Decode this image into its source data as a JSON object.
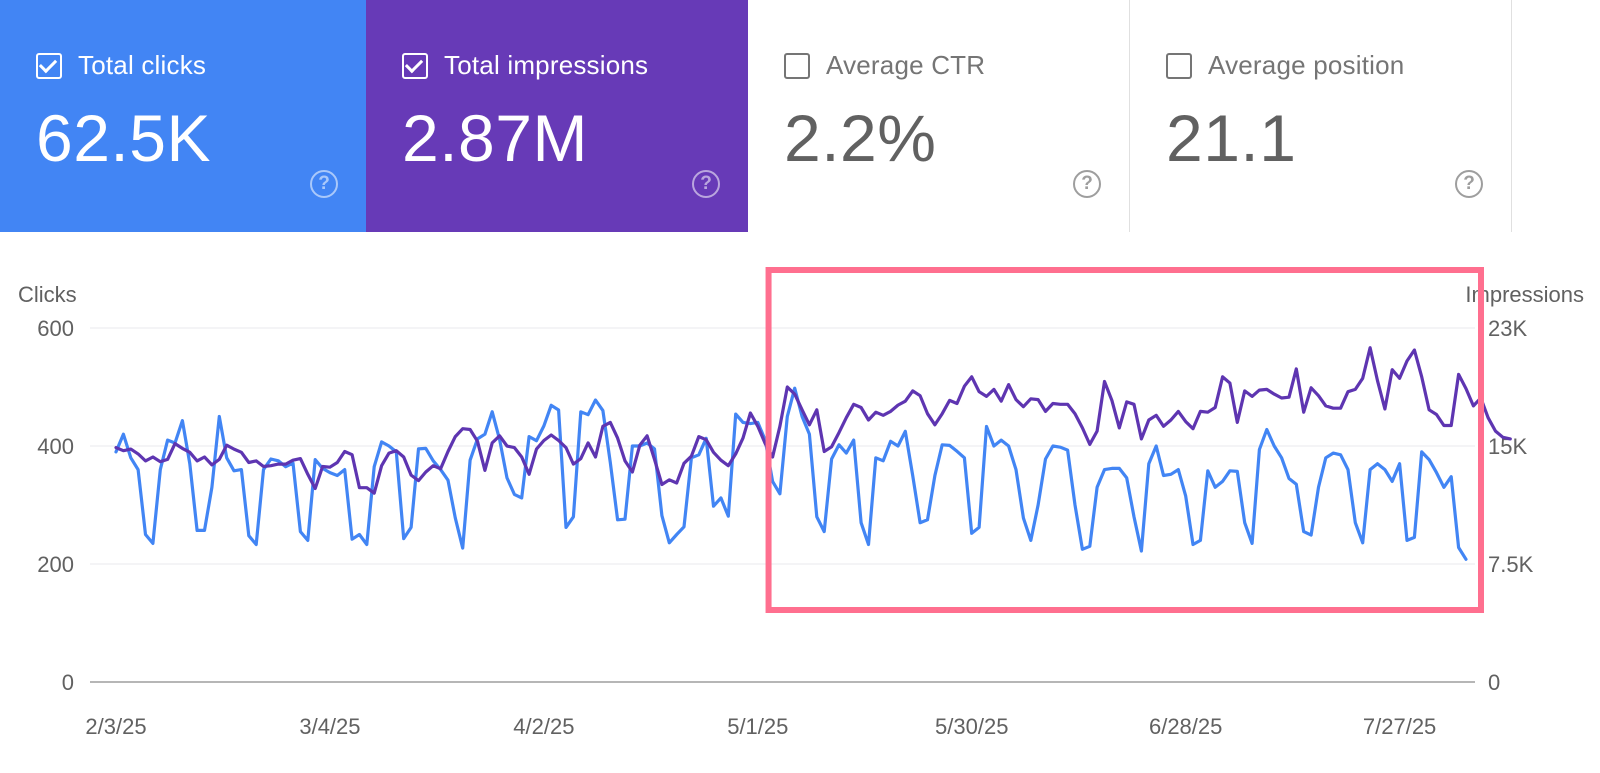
{
  "cards": [
    {
      "label": "Total clicks",
      "value": "62.5K",
      "checked": true,
      "color": "#4285f4"
    },
    {
      "label": "Total impressions",
      "value": "2.87M",
      "checked": true,
      "color": "#673ab7"
    },
    {
      "label": "Average CTR",
      "value": "2.2%",
      "checked": false,
      "color": "#ffffff"
    },
    {
      "label": "Average position",
      "value": "21.1",
      "checked": false,
      "color": "#ffffff"
    }
  ],
  "help_glyph": "?",
  "chart_data": {
    "type": "line",
    "left_axis_title": "Clicks",
    "right_axis_title": "Impressions",
    "left_ticks": [
      "0",
      "200",
      "400",
      "600"
    ],
    "left_tick_values": [
      0,
      200,
      400,
      600
    ],
    "right_ticks": [
      "0",
      "7.5K",
      "15K",
      "23K"
    ],
    "right_tick_values": [
      0,
      7500,
      15000,
      22500
    ],
    "ylim_left": [
      0,
      600
    ],
    "ylim_right": [
      0,
      22500
    ],
    "x_tick_labels": [
      "2/3/25",
      "3/4/25",
      "4/2/25",
      "5/1/25",
      "5/30/25",
      "6/28/25",
      "7/27/25"
    ],
    "x_tick_days": [
      0,
      29,
      58,
      87,
      116,
      145,
      174
    ],
    "n_days": 184,
    "grid": true,
    "highlight": {
      "start_day": 89,
      "end_day": 184,
      "color": "#ff6f8f"
    },
    "series": [
      {
        "name": "Clicks",
        "axis": "left",
        "color": "#4285f4",
        "values": [
          390,
          420,
          380,
          360,
          250,
          235,
          360,
          410,
          405,
          443,
          370,
          257,
          257,
          330,
          450,
          380,
          358,
          360,
          248,
          233,
          360,
          378,
          375,
          365,
          371,
          255,
          240,
          377,
          362,
          355,
          350,
          360,
          242,
          250,
          233,
          365,
          407,
          400,
          390,
          243,
          262,
          395,
          396,
          375,
          360,
          342,
          278,
          227,
          376,
          412,
          420,
          458,
          411,
          346,
          318,
          312,
          416,
          409,
          434,
          469,
          461,
          262,
          280,
          458,
          453,
          478,
          460,
          372,
          275,
          276,
          400,
          400,
          405,
          395,
          282,
          236,
          250,
          263,
          380,
          385,
          413,
          298,
          312,
          281,
          454,
          440,
          438,
          440,
          410,
          340,
          319,
          450,
          498,
          450,
          420,
          280,
          255,
          378,
          402,
          388,
          410,
          270,
          233,
          380,
          375,
          408,
          400,
          425,
          350,
          270,
          275,
          350,
          402,
          401,
          391,
          380,
          252,
          262,
          433,
          400,
          410,
          400,
          360,
          278,
          240,
          300,
          378,
          400,
          398,
          393,
          300,
          225,
          230,
          330,
          360,
          362,
          362,
          346,
          280,
          222,
          370,
          400,
          350,
          352,
          360,
          315,
          233,
          240,
          358,
          330,
          340,
          358,
          357,
          270,
          235,
          394,
          428,
          400,
          380,
          345,
          335,
          255,
          249,
          330,
          380,
          388,
          385,
          360,
          270,
          236,
          360,
          370,
          360,
          340,
          370,
          240,
          245,
          390,
          377,
          355,
          330,
          348,
          228,
          208
        ]
      },
      {
        "name": "Impressions",
        "axis": "right",
        "color": "#5e35b1",
        "values": [
          14900,
          14700,
          14800,
          14500,
          14050,
          14300,
          14000,
          14150,
          15150,
          14850,
          14600,
          14050,
          14300,
          13800,
          14150,
          15050,
          14800,
          14600,
          13950,
          14050,
          13700,
          13750,
          13850,
          13850,
          14100,
          14200,
          13200,
          12300,
          13700,
          13650,
          13950,
          14650,
          14450,
          12350,
          12350,
          12000,
          13750,
          14550,
          14700,
          14300,
          13150,
          12800,
          13350,
          13750,
          13550,
          14650,
          15600,
          16100,
          16050,
          15300,
          13450,
          15200,
          15650,
          15000,
          14900,
          14300,
          13200,
          14800,
          15350,
          15700,
          15350,
          14900,
          13850,
          14200,
          15200,
          14300,
          16250,
          16500,
          15500,
          14050,
          13350,
          15050,
          15650,
          14150,
          12550,
          12850,
          12650,
          13900,
          14350,
          15600,
          15400,
          14600,
          14100,
          13750,
          14500,
          15500,
          17100,
          16250,
          15150,
          14300,
          16250,
          18750,
          18300,
          17300,
          16350,
          17300,
          14650,
          14950,
          15850,
          16800,
          17650,
          17450,
          16650,
          17150,
          16950,
          17200,
          17600,
          17850,
          18500,
          18200,
          17050,
          16350,
          17050,
          17900,
          17700,
          18800,
          19400,
          18450,
          18150,
          18600,
          17850,
          18900,
          17950,
          17500,
          18000,
          17950,
          17200,
          17700,
          17650,
          17650,
          17050,
          16150,
          15100,
          15950,
          19100,
          17900,
          16150,
          17800,
          17650,
          15450,
          16650,
          16950,
          16250,
          16650,
          17200,
          16550,
          16100,
          17200,
          17150,
          17450,
          19400,
          19000,
          16500,
          18500,
          18150,
          18550,
          18600,
          18300,
          18050,
          18100,
          19900,
          17150,
          18700,
          18200,
          17550,
          17400,
          17400,
          18450,
          18600,
          19300,
          21250,
          19150,
          17350,
          19850,
          19300,
          20400,
          21100,
          19400,
          17300,
          17000,
          16300,
          16300,
          19550,
          18650,
          17550,
          18050,
          16800,
          15950,
          15550,
          15450
        ]
      }
    ]
  }
}
